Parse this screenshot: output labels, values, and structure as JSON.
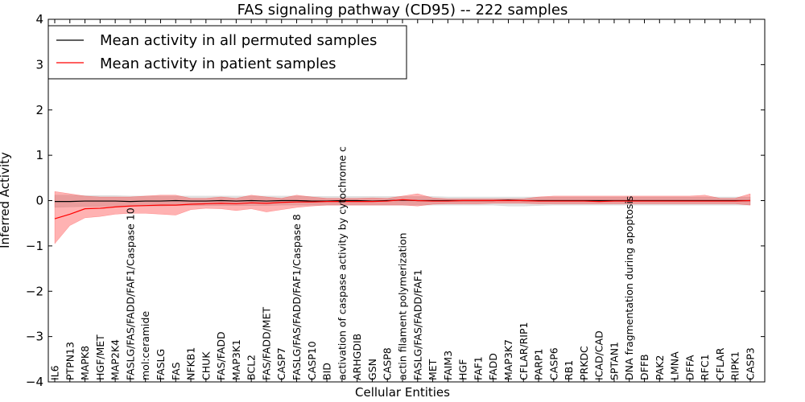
{
  "chart_data": {
    "type": "line",
    "title": "FAS signaling pathway (CD95) -- 222 samples",
    "xlabel": "Cellular Entities",
    "ylabel": "Inferred Activity",
    "ylim": [
      -4,
      4
    ],
    "yticks": [
      -4,
      -3,
      -2,
      -1,
      0,
      1,
      2,
      3,
      4
    ],
    "ytick_labels": [
      "−4",
      "−3",
      "−2",
      "−1",
      "0",
      "1",
      "2",
      "3",
      "4"
    ],
    "grid": false,
    "legend_position": "top-left",
    "categories": [
      "IL6",
      "PTPN13",
      "MAPK8",
      "HGF/MET",
      "MAP2K4",
      "FASLG/FAS/FADD/FAF1/Caspase 10",
      "mol:ceramide",
      "FASLG",
      "FAS",
      "NFKB1",
      "CHUK",
      "FAS/FADD",
      "MAP3K1",
      "BCL2",
      "FAS/FADD/MET",
      "CASP7",
      "FASLG/FAS/FADD/FAF1/Caspase 8",
      "CASP10",
      "BID",
      "activation of caspase activity by cytochrome c",
      "ARHGDIB",
      "GSN",
      "CASP8",
      "actin filament polymerization",
      "FASLG/FAS/FADD/FAF1",
      "MET",
      "FAIM3",
      "HGF",
      "FAF1",
      "FADD",
      "MAP3K7",
      "CFLAR/RIP1",
      "PARP1",
      "CASP6",
      "RB1",
      "PRKDC",
      "ICAD/CAD",
      "SPTAN1",
      "DNA fragmentation during apoptosis",
      "DFFB",
      "PAK2",
      "LMNA",
      "DFFA",
      "RFC1",
      "CFLAR",
      "RIPK1",
      "CASP3"
    ],
    "series": [
      {
        "name": "Mean activity in all permuted samples",
        "color": "#000000",
        "fill_color": "#aaaaaa",
        "values": [
          -0.02,
          -0.02,
          -0.01,
          -0.01,
          -0.01,
          -0.02,
          -0.01,
          -0.01,
          0.0,
          -0.01,
          -0.01,
          0.0,
          -0.01,
          0.0,
          -0.01,
          0.0,
          0.0,
          -0.01,
          -0.01,
          0.0,
          0.0,
          -0.01,
          0.0,
          0.01,
          0.0,
          0.0,
          0.0,
          0.0,
          0.0,
          0.0,
          0.01,
          0.0,
          0.0,
          0.0,
          0.0,
          0.0,
          0.0,
          0.0,
          0.0,
          0.0,
          0.0,
          0.0,
          0.0,
          0.0,
          0.0,
          0.0,
          0.0
        ],
        "lower": [
          -0.15,
          -0.14,
          -0.13,
          -0.13,
          -0.12,
          -0.12,
          -0.12,
          -0.12,
          -0.11,
          -0.11,
          -0.11,
          -0.11,
          -0.11,
          -0.11,
          -0.11,
          -0.1,
          -0.1,
          -0.1,
          -0.1,
          -0.1,
          -0.1,
          -0.1,
          -0.1,
          -0.1,
          -0.1,
          -0.1,
          -0.1,
          -0.1,
          -0.1,
          -0.1,
          -0.12,
          -0.12,
          -0.11,
          -0.1,
          -0.1,
          -0.1,
          -0.1,
          -0.1,
          -0.1,
          -0.1,
          -0.1,
          -0.1,
          -0.1,
          -0.1,
          -0.1,
          -0.1,
          -0.1
        ],
        "upper": [
          0.12,
          0.12,
          0.11,
          0.11,
          0.11,
          0.1,
          0.1,
          0.1,
          0.1,
          0.1,
          0.1,
          0.1,
          0.1,
          0.1,
          0.1,
          0.1,
          0.1,
          0.09,
          0.09,
          0.09,
          0.09,
          0.09,
          0.09,
          0.09,
          0.09,
          0.09,
          0.08,
          0.08,
          0.08,
          0.08,
          0.08,
          0.08,
          0.08,
          0.08,
          0.08,
          0.08,
          0.08,
          0.08,
          0.08,
          0.08,
          0.08,
          0.08,
          0.08,
          0.08,
          0.08,
          0.08,
          0.08
        ]
      },
      {
        "name": "Mean activity in patient samples",
        "color": "#ff0000",
        "fill_color": "#ff0000",
        "values": [
          -0.4,
          -0.3,
          -0.18,
          -0.17,
          -0.14,
          -0.12,
          -0.11,
          -0.1,
          -0.1,
          -0.08,
          -0.07,
          -0.06,
          -0.07,
          -0.05,
          -0.06,
          -0.04,
          -0.03,
          -0.03,
          -0.02,
          -0.02,
          -0.02,
          -0.02,
          -0.01,
          0.02,
          0.0,
          -0.01,
          -0.01,
          0.0,
          0.0,
          0.0,
          0.0,
          0.0,
          -0.01,
          -0.01,
          -0.01,
          -0.01,
          -0.02,
          -0.01,
          -0.01,
          -0.01,
          -0.01,
          -0.01,
          -0.01,
          -0.01,
          -0.01,
          -0.01,
          0.0
        ],
        "lower": [
          -0.95,
          -0.55,
          -0.38,
          -0.35,
          -0.3,
          -0.28,
          -0.28,
          -0.3,
          -0.32,
          -0.2,
          -0.17,
          -0.18,
          -0.22,
          -0.18,
          -0.25,
          -0.2,
          -0.15,
          -0.12,
          -0.1,
          -0.1,
          -0.1,
          -0.1,
          -0.1,
          -0.1,
          -0.12,
          -0.08,
          -0.07,
          -0.07,
          -0.07,
          -0.06,
          -0.06,
          -0.06,
          -0.07,
          -0.07,
          -0.07,
          -0.07,
          -0.07,
          -0.07,
          -0.07,
          -0.07,
          -0.07,
          -0.07,
          -0.07,
          -0.07,
          -0.07,
          -0.07,
          -0.1
        ],
        "upper": [
          0.2,
          0.15,
          0.1,
          0.08,
          0.08,
          0.08,
          0.1,
          0.12,
          0.12,
          0.05,
          0.05,
          0.08,
          0.05,
          0.12,
          0.08,
          0.05,
          0.12,
          0.08,
          0.05,
          0.05,
          0.05,
          0.06,
          0.05,
          0.1,
          0.15,
          0.06,
          0.04,
          0.04,
          0.04,
          0.04,
          0.04,
          0.04,
          0.08,
          0.1,
          0.1,
          0.1,
          0.1,
          0.1,
          0.1,
          0.1,
          0.1,
          0.1,
          0.1,
          0.12,
          0.05,
          0.05,
          0.15
        ]
      }
    ]
  }
}
